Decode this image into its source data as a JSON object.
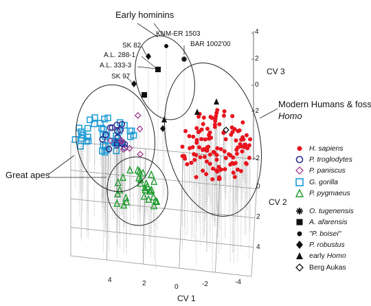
{
  "chart_data": {
    "type": "scatter",
    "projection": "3d",
    "axes": {
      "cv1": {
        "label": "CV 1",
        "ticks": [
          "4",
          "2",
          "0",
          "-2",
          "-4"
        ]
      },
      "cv2": {
        "label": "CV 2",
        "ticks": [
          "-2",
          "0",
          "2",
          "4"
        ]
      },
      "cv3": {
        "label": "CV 3",
        "ticks": [
          "4",
          "2",
          "0",
          "-2"
        ]
      }
    },
    "grid": true,
    "drop_lines": true,
    "legend_position": "right",
    "groups": [
      {
        "name": "Early hominins"
      },
      {
        "name": "Modern Humans & fossil Homo",
        "name_plain": "Modern Humans & fossil ",
        "name_italic": "Homo"
      },
      {
        "name": "Great apes"
      }
    ],
    "series": [
      {
        "name": "H. sapiens",
        "marker": "filled-circle",
        "color": "#e8141e",
        "approx_count": 120
      },
      {
        "name": "P. troglodytes",
        "marker": "open-circle",
        "color": "#2b2a8f",
        "approx_count": 15
      },
      {
        "name": "P. paniscus",
        "marker": "open-diamond",
        "color": "#a0378f",
        "approx_count": 8
      },
      {
        "name": "G. gorilla",
        "marker": "open-square",
        "color": "#1a9ad6",
        "approx_count": 45
      },
      {
        "name": "P. pygmaeus",
        "marker": "open-triangle",
        "color": "#1e9a2e",
        "approx_count": 30
      },
      {
        "name": "O. tugenensis",
        "marker": "asterisk",
        "color": "#111111",
        "label": "BAR 1002'00"
      },
      {
        "name": "A. afarensis",
        "marker": "filled-square",
        "color": "#111111",
        "labels": [
          "A.L. 288-1",
          "A.L. 333-3"
        ]
      },
      {
        "name": "\"P. boisei\"",
        "marker": "filled-circle",
        "color": "#111111",
        "label": "KNM-ER 1503"
      },
      {
        "name": "P. robustus",
        "marker": "filled-diamond",
        "color": "#111111",
        "labels": [
          "SK 82",
          "SK 97"
        ]
      },
      {
        "name": "early Homo",
        "marker": "filled-triangle",
        "color": "#111111"
      },
      {
        "name": "Berg Aukas",
        "marker": "open-diamond",
        "color": "#111111"
      }
    ],
    "specimen_labels": [
      "Early hominins",
      "KNM-ER 1503",
      "BAR 1002'00",
      "SK 82",
      "A.L. 288-1",
      "A.L. 333-3",
      "SK 97"
    ]
  }
}
